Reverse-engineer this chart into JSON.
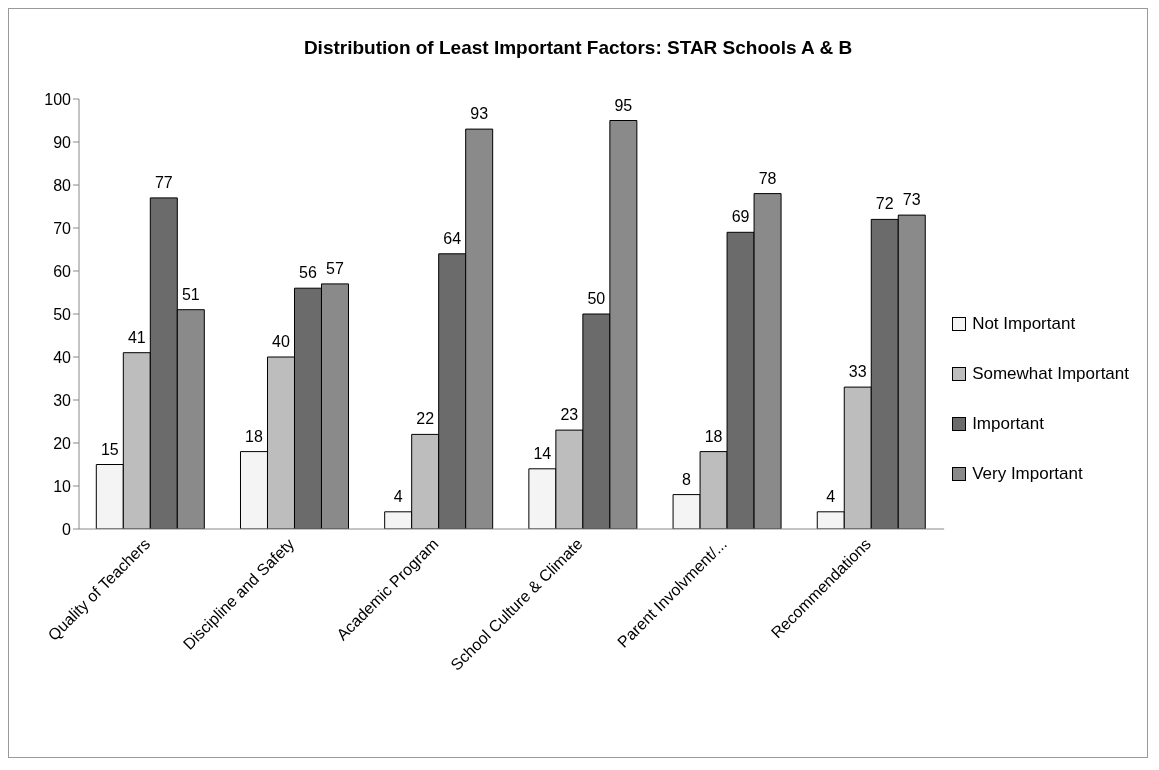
{
  "chart_data": {
    "type": "bar",
    "title": "Distribution of Least Important Factors: STAR Schools A & B",
    "categories": [
      "Quality of Teachers",
      "Discipline and Safety",
      "Academic Program",
      "School Culture & Climate",
      "Parent Involvment/...",
      "Recommendations"
    ],
    "series": [
      {
        "name": "Not Important",
        "color": "#f4f4f4",
        "values": [
          15,
          18,
          4,
          14,
          8,
          4
        ]
      },
      {
        "name": "Somewhat Important",
        "color": "#bdbdbd",
        "values": [
          41,
          40,
          22,
          23,
          18,
          33
        ]
      },
      {
        "name": "Important",
        "color": "#6b6b6b",
        "values": [
          77,
          56,
          64,
          50,
          69,
          72
        ]
      },
      {
        "name": "Very Important",
        "color": "#8a8a8a",
        "values": [
          51,
          57,
          93,
          95,
          78,
          73
        ]
      }
    ],
    "ylim": [
      0,
      100
    ],
    "yticks": [
      0,
      10,
      20,
      30,
      40,
      50,
      60,
      70,
      80,
      90,
      100
    ],
    "grid": false,
    "legend": "right",
    "data_labels": true
  }
}
